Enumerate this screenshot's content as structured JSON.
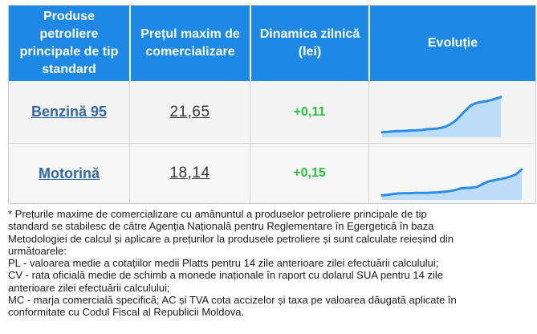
{
  "table": {
    "headers": {
      "product": "Produse petroliere principale de tip standard",
      "price": "Prețul maxim de comercializare",
      "dynamic": "Dinamica zilnică (lei)",
      "evolution": "Evoluție"
    },
    "rows": [
      {
        "product": "Benzină 95",
        "price": "21,65",
        "delta": "+0,11",
        "trend": [
          0.05,
          0.06,
          0.07,
          0.08,
          0.08,
          0.09,
          0.1,
          0.1,
          0.11,
          0.13,
          0.14,
          0.15,
          0.17,
          0.21,
          0.28,
          0.38,
          0.52,
          0.66,
          0.78,
          0.84,
          0.87,
          0.89,
          0.92,
          0.96,
          1.0
        ]
      },
      {
        "product": "Motorină",
        "price": "18,14",
        "delta": "+0,15",
        "trend": [
          0.05,
          0.07,
          0.1,
          0.12,
          0.13,
          0.13,
          0.14,
          0.14,
          0.14,
          0.15,
          0.16,
          0.18,
          0.2,
          0.24,
          0.3,
          0.32,
          0.33,
          0.36,
          0.46,
          0.56,
          0.6,
          0.64,
          0.68,
          0.74,
          0.82,
          1.0
        ]
      }
    ],
    "colors": {
      "header_bg": "#1e88e5",
      "trend_line": "#2b8ee8",
      "trend_fill": "#bcdcf8",
      "delta_positive": "#27c33a",
      "product_link": "#3567a8"
    }
  },
  "notes": {
    "l1": "* Prețurile maxime de comercializare cu amănuntul a produselor petroliere principale de tip",
    "l2": "standard se stabilesc de către Agenția Națională pentru Reglementare în Egergetică în baza",
    "l3": "Metodologiei de calcul și aplicare a prețurilor la produsele petroliere și sunt calculate reieșind din",
    "l4": "următoarele:",
    "l5": "PL - valoarea medie a cotațiilor medii Platts pentru 14 zile anterioare zilei efectuării calculului;",
    "l6": "CV - rata oficială medie de schimb a monede inaționale în raport cu dolarul SUA pentru 14 zile",
    "l7": "anterioare zilei efectuării calculului;",
    "l8": "MC - marja comercială specifică; AC și TVA cota accizelor și taxa pe valoarea dăugată aplicate în",
    "l9": "conformitate cu Codul Fiscal al Republicii Moldova."
  }
}
